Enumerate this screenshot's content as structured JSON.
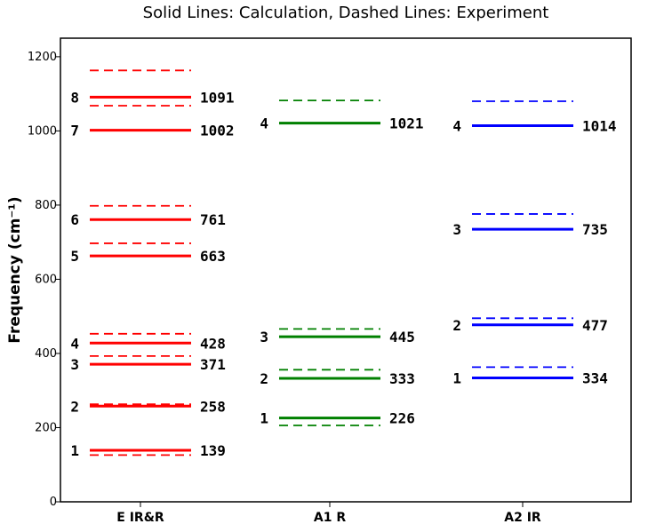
{
  "chart_data": {
    "type": "energy-level",
    "title": "Solid Lines: Calculation, Dashed Lines: Experiment",
    "ylabel": "Frequency (cm⁻¹)",
    "ylim": [
      0,
      1250
    ],
    "yticks": [
      0,
      200,
      400,
      600,
      800,
      1000,
      1200
    ],
    "categories": [
      "E IR&R",
      "A1 R",
      "A2 IR"
    ],
    "series": [
      {
        "category": "E IR&R",
        "color": "#ff0000",
        "calculated": [
          {
            "index": "1",
            "value": 139,
            "label": "139"
          },
          {
            "index": "2",
            "value": 258,
            "label": "258"
          },
          {
            "index": "3",
            "value": 371,
            "label": "371"
          },
          {
            "index": "4",
            "value": 428,
            "label": "428"
          },
          {
            "index": "5",
            "value": 663,
            "label": "663"
          },
          {
            "index": "6",
            "value": 761,
            "label": "761"
          },
          {
            "index": "7",
            "value": 1002,
            "label": "1002"
          },
          {
            "index": "8",
            "value": 1091,
            "label": "1091"
          }
        ],
        "experimental": [
          126,
          263,
          393,
          453,
          697,
          798,
          1068,
          1163
        ]
      },
      {
        "category": "A1 R",
        "color": "#008000",
        "calculated": [
          {
            "index": "1",
            "value": 226,
            "label": "226"
          },
          {
            "index": "2",
            "value": 333,
            "label": "333"
          },
          {
            "index": "3",
            "value": 445,
            "label": "445"
          },
          {
            "index": "4",
            "value": 1021,
            "label": "1021"
          }
        ],
        "experimental": [
          206,
          356,
          466,
          1082
        ]
      },
      {
        "category": "A2 IR",
        "color": "#0000ff",
        "calculated": [
          {
            "index": "1",
            "value": 334,
            "label": "334"
          },
          {
            "index": "2",
            "value": 477,
            "label": "477"
          },
          {
            "index": "3",
            "value": 735,
            "label": "735"
          },
          {
            "index": "4",
            "value": 1014,
            "label": "1014"
          }
        ],
        "experimental": [
          363,
          495,
          776,
          1080
        ]
      }
    ],
    "grid": false,
    "legend": "none"
  }
}
